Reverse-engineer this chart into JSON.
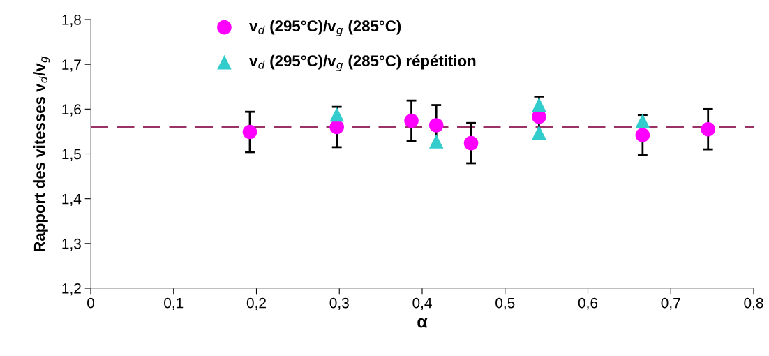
{
  "chart_data": {
    "type": "scatter",
    "xlabel": "α",
    "ylabel": "Rapport des vitesses v$_{d}$/v$_{g}$",
    "xlim": [
      0,
      0.8
    ],
    "ylim": [
      1.2,
      1.8
    ],
    "xticks": [
      0,
      {
        "value": 0.1,
        "label": "0,1"
      },
      {
        "value": 0.2,
        "label": "0,2"
      },
      {
        "value": 0.3,
        "label": "0,3"
      },
      {
        "value": 0.4,
        "label": "0,4"
      },
      {
        "value": 0.5,
        "label": "0,5"
      },
      {
        "value": 0.6,
        "label": "0,6"
      },
      {
        "value": 0.7,
        "label": "0,7"
      },
      {
        "value": 0.8,
        "label": "0,8"
      }
    ],
    "yticks": [
      {
        "value": 1.2,
        "label": "1,2"
      },
      {
        "value": 1.3,
        "label": "1,3"
      },
      {
        "value": 1.4,
        "label": "1,4"
      },
      {
        "value": 1.5,
        "label": "1,5"
      },
      {
        "value": 1.6,
        "label": "1,6"
      },
      {
        "value": 1.7,
        "label": "1,7"
      },
      {
        "value": 1.8,
        "label": "1,8"
      }
    ],
    "grid": false,
    "legend": "top",
    "series": [
      {
        "name": "v$_{d}$ (295°C)/v$_{g}$ (285°C)",
        "color": "#ff00ff",
        "marker": "circle",
        "x": [
          0.192,
          0.297,
          0.387,
          0.417,
          0.459,
          0.541,
          0.666,
          0.745
        ],
        "values": [
          1.549,
          1.56,
          1.574,
          1.564,
          1.524,
          1.583,
          1.542,
          1.555
        ],
        "errors": [
          0.045,
          0.045,
          0.045,
          0.045,
          0.045,
          0.045,
          0.045,
          0.045
        ]
      },
      {
        "name": "v$_{d}$ (295°C)/v$_{g}$ (285°C) répétition",
        "color": "#33cccc",
        "marker": "triangle",
        "x": [
          0.297,
          0.417,
          0.541,
          0.541,
          0.666
        ],
        "values": [
          1.588,
          1.528,
          1.61,
          1.548,
          1.574
        ]
      }
    ],
    "ref_lines": [
      {
        "axis": "y",
        "value": 1.56,
        "label": null,
        "color": "#993366",
        "line_style": "dashed"
      }
    ]
  }
}
